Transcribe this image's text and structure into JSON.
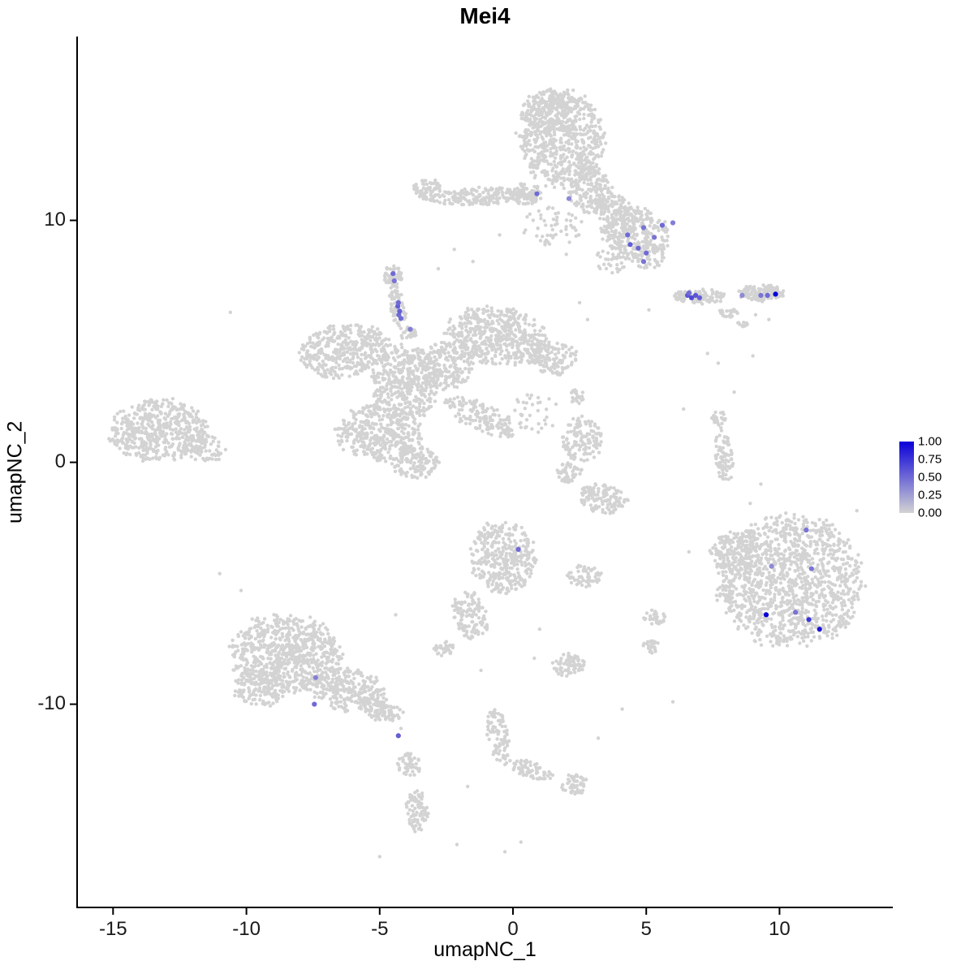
{
  "chart_data": {
    "type": "scatter",
    "title": "Mei4",
    "xlabel": "umapNC_1",
    "ylabel": "umapNC_2",
    "xlim": [
      -16.35,
      14.25
    ],
    "ylim": [
      -18.4,
      17.6
    ],
    "x_ticks": [
      -15,
      -10,
      -5,
      0,
      5,
      10
    ],
    "y_ticks": [
      -10,
      0,
      10
    ],
    "grid": false,
    "legend": {
      "position": "right",
      "ticks": [
        "1.00",
        "0.75",
        "0.50",
        "0.25",
        "0.00"
      ]
    },
    "colors": {
      "background_points": "#D3D3D3",
      "expression_low": "#D3D3D3",
      "expression_high": "#0A00D8",
      "axis": "#000000",
      "tick_text": "#1a1a1a",
      "panel_bg": "#FFFFFF"
    },
    "point_style": {
      "bg_radius": 2.2,
      "expr_radius": 3.1
    },
    "seed": 42,
    "background_clusters": [
      [
        1.8,
        13.4,
        1.6,
        2.0,
        650,
        0
      ],
      [
        1.2,
        14.6,
        0.9,
        0.8,
        140,
        0
      ],
      [
        2.9,
        11.3,
        0.8,
        1.0,
        170,
        0
      ],
      [
        4.6,
        9.5,
        1.3,
        1.0,
        300,
        -15
      ],
      [
        3.7,
        10.5,
        0.8,
        0.6,
        110,
        -30
      ],
      [
        5.0,
        8.5,
        0.7,
        0.5,
        60,
        0
      ],
      [
        1.5,
        9.8,
        1.2,
        0.8,
        55,
        0
      ],
      [
        3.8,
        8.4,
        0.8,
        0.6,
        40,
        0
      ],
      [
        -1.2,
        11.0,
        1.9,
        0.35,
        190,
        3
      ],
      [
        -3.2,
        11.3,
        0.55,
        0.45,
        65,
        0
      ],
      [
        0.5,
        11.1,
        0.6,
        0.45,
        75,
        0
      ],
      [
        7.0,
        6.85,
        1.0,
        0.3,
        110,
        0
      ],
      [
        9.3,
        7.0,
        0.85,
        0.35,
        130,
        0
      ],
      [
        8.1,
        6.2,
        0.35,
        0.2,
        22,
        0
      ],
      [
        8.6,
        5.7,
        0.2,
        0.15,
        10,
        0
      ],
      [
        -4.35,
        6.5,
        0.28,
        1.1,
        70,
        8
      ],
      [
        -4.5,
        7.7,
        0.4,
        0.4,
        45,
        0
      ],
      [
        -3.9,
        5.3,
        0.3,
        0.3,
        25,
        0
      ],
      [
        -6.3,
        4.6,
        1.7,
        1.1,
        400,
        10
      ],
      [
        -5.0,
        1.2,
        1.6,
        1.2,
        400,
        0
      ],
      [
        -4.0,
        3.3,
        1.3,
        1.5,
        430,
        0
      ],
      [
        -0.6,
        5.2,
        1.9,
        1.2,
        500,
        -8
      ],
      [
        1.5,
        4.3,
        0.9,
        0.7,
        130,
        0
      ],
      [
        -1.2,
        1.9,
        1.5,
        0.55,
        160,
        -25
      ],
      [
        -2.5,
        4.0,
        1.0,
        1.0,
        190,
        0
      ],
      [
        -3.7,
        0.0,
        0.9,
        0.7,
        120,
        0
      ],
      [
        0.8,
        2.0,
        0.9,
        0.9,
        35,
        0
      ],
      [
        -13.3,
        1.3,
        1.8,
        1.3,
        500,
        5
      ],
      [
        -11.6,
        0.6,
        0.8,
        0.6,
        85,
        -20
      ],
      [
        2.6,
        0.9,
        0.75,
        1.0,
        130,
        0
      ],
      [
        2.1,
        -0.4,
        0.5,
        0.45,
        50,
        0
      ],
      [
        3.4,
        -1.5,
        0.95,
        0.6,
        130,
        -10
      ],
      [
        2.4,
        2.7,
        0.3,
        0.35,
        22,
        0
      ],
      [
        7.9,
        0.2,
        0.35,
        1.1,
        80,
        5
      ],
      [
        7.75,
        1.8,
        0.3,
        0.4,
        26,
        0
      ],
      [
        10.4,
        -4.9,
        2.7,
        2.7,
        1250,
        0
      ],
      [
        8.3,
        -3.8,
        0.9,
        0.9,
        150,
        0
      ],
      [
        -0.35,
        -3.9,
        1.25,
        1.5,
        360,
        0
      ],
      [
        -1.6,
        -6.3,
        0.65,
        1.0,
        120,
        15
      ],
      [
        -2.6,
        -7.7,
        0.4,
        0.3,
        32,
        0
      ],
      [
        2.7,
        -4.7,
        0.65,
        0.45,
        55,
        0
      ],
      [
        2.1,
        -8.4,
        0.6,
        0.5,
        70,
        0
      ],
      [
        5.3,
        -6.4,
        0.4,
        0.3,
        32,
        0
      ],
      [
        5.2,
        -7.6,
        0.35,
        0.28,
        26,
        0
      ],
      [
        -8.5,
        -7.9,
        2.1,
        1.6,
        700,
        -5
      ],
      [
        -6.2,
        -9.4,
        1.4,
        0.9,
        260,
        -10
      ],
      [
        -4.9,
        -10.2,
        0.8,
        0.5,
        100,
        -25
      ],
      [
        -9.5,
        -9.3,
        1.0,
        0.8,
        140,
        0
      ],
      [
        -3.9,
        -12.5,
        0.45,
        0.45,
        50,
        0
      ],
      [
        -3.6,
        -14.4,
        0.4,
        0.9,
        80,
        5
      ],
      [
        -0.55,
        -11.3,
        0.4,
        1.1,
        90,
        8
      ],
      [
        0.6,
        -12.7,
        0.9,
        0.35,
        65,
        -18
      ],
      [
        2.3,
        -13.3,
        0.55,
        0.4,
        50,
        0
      ]
    ],
    "background_singles": [
      [
        -10.6,
        6.2
      ],
      [
        -2.8,
        8.0
      ],
      [
        -2.2,
        8.8
      ],
      [
        -1.5,
        8.3
      ],
      [
        2.5,
        6.6
      ],
      [
        2.8,
        5.9
      ],
      [
        5.1,
        6.3
      ],
      [
        7.3,
        4.5
      ],
      [
        7.7,
        4.1
      ],
      [
        8.3,
        2.9
      ],
      [
        6.4,
        2.2
      ],
      [
        9.0,
        4.4
      ],
      [
        9.1,
        6.1
      ],
      [
        9.6,
        5.9
      ],
      [
        9.3,
        -0.9
      ],
      [
        8.9,
        -1.7
      ],
      [
        9.5,
        -2.3
      ],
      [
        6.6,
        -3.7
      ],
      [
        1.0,
        -6.9
      ],
      [
        0.8,
        -8.1
      ],
      [
        -1.2,
        -8.6
      ],
      [
        -4.4,
        -6.3
      ],
      [
        -10.2,
        -5.3
      ],
      [
        -11.0,
        -4.6
      ],
      [
        3.2,
        -11.4
      ],
      [
        4.1,
        -10.2
      ],
      [
        6.0,
        -9.9
      ],
      [
        0.3,
        -15.7
      ],
      [
        -0.3,
        -16.1
      ],
      [
        -2.1,
        -15.8
      ],
      [
        -5.0,
        -16.3
      ],
      [
        -1.7,
        -13.4
      ],
      [
        12.9,
        -2.0
      ],
      [
        2.0,
        8.6
      ],
      [
        1.2,
        9.1
      ],
      [
        -0.5,
        9.4
      ],
      [
        -4.2,
        -11.0
      ]
    ],
    "expressed_points": [
      [
        0.9,
        11.1,
        0.5
      ],
      [
        2.1,
        10.9,
        0.35
      ],
      [
        4.3,
        9.4,
        0.5
      ],
      [
        4.9,
        9.7,
        0.45
      ],
      [
        5.6,
        9.8,
        0.5
      ],
      [
        4.4,
        9.0,
        0.55
      ],
      [
        4.7,
        8.85,
        0.5
      ],
      [
        5.0,
        8.65,
        0.5
      ],
      [
        4.9,
        8.3,
        0.45
      ],
      [
        6.0,
        9.9,
        0.4
      ],
      [
        5.3,
        9.3,
        0.45
      ],
      [
        -4.5,
        7.8,
        0.5
      ],
      [
        -4.45,
        7.5,
        0.45
      ],
      [
        -4.32,
        6.45,
        0.55
      ],
      [
        -4.3,
        6.6,
        0.5
      ],
      [
        -4.28,
        6.1,
        0.5
      ],
      [
        -4.25,
        6.25,
        0.55
      ],
      [
        -4.2,
        5.95,
        0.5
      ],
      [
        -3.85,
        5.5,
        0.4
      ],
      [
        6.55,
        6.9,
        0.6
      ],
      [
        6.7,
        6.8,
        0.65
      ],
      [
        6.85,
        6.9,
        0.6
      ],
      [
        7.0,
        6.8,
        0.55
      ],
      [
        6.6,
        7.0,
        0.5
      ],
      [
        8.6,
        6.9,
        0.35
      ],
      [
        9.3,
        6.9,
        0.45
      ],
      [
        9.55,
        6.9,
        0.5
      ],
      [
        9.85,
        6.95,
        1.0
      ],
      [
        0.2,
        -3.6,
        0.5
      ],
      [
        11.0,
        -2.8,
        0.45
      ],
      [
        9.7,
        -4.3,
        0.35
      ],
      [
        11.2,
        -4.4,
        0.45
      ],
      [
        9.5,
        -6.3,
        1.0
      ],
      [
        10.6,
        -6.2,
        0.45
      ],
      [
        11.1,
        -6.5,
        0.75
      ],
      [
        11.5,
        -6.9,
        0.9
      ],
      [
        -7.4,
        -8.9,
        0.4
      ],
      [
        -7.45,
        -10.0,
        0.5
      ],
      [
        -4.3,
        -11.3,
        0.55
      ]
    ]
  }
}
